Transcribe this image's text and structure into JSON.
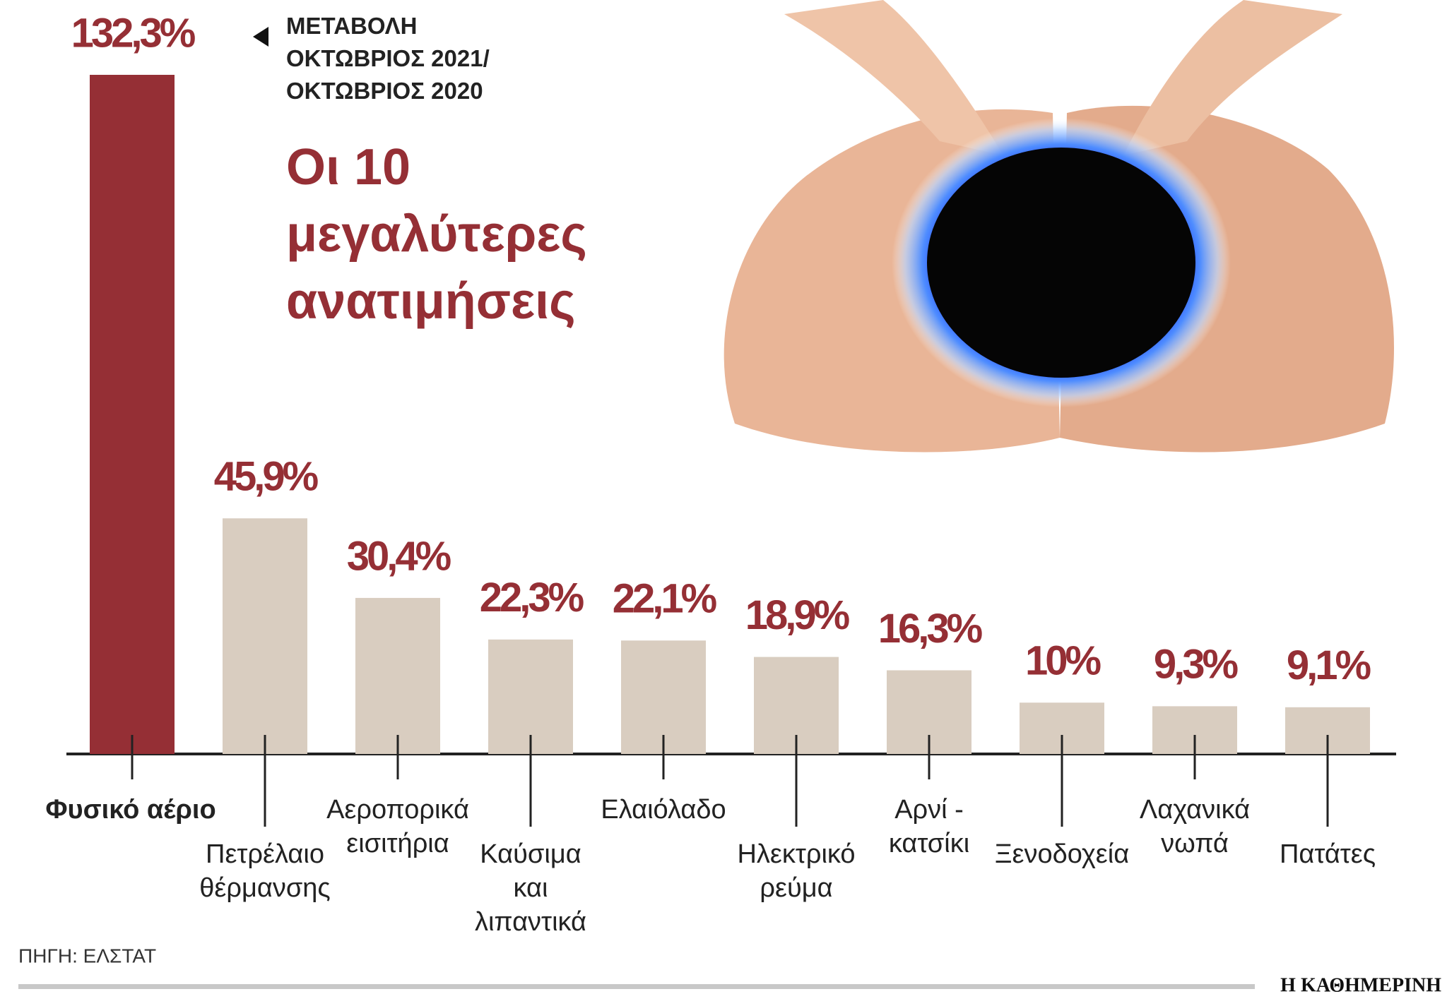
{
  "chart_data": {
    "type": "bar",
    "title": "Οι 10\nμεγαλύτερες\nανατιμήσεις",
    "subtitle": "ΜΕΤΑΒΟΛΗ\nΟΚΤΩΒΡΙΟΣ 2021/\nΟΚΤΩΒΡΙΟΣ 2020",
    "categories": [
      "Φυσικό αέριο",
      "Πετρέλαιο\nθέρμανσης",
      "Αεροπορικά\nεισιτήρια",
      "Καύσιμα\nκαι\nλιπαντικά",
      "Ελαιόλαδο",
      "Ηλεκτρικό\nρεύμα",
      "Αρνί -\nκατσίκι",
      "Ξενοδοχεία",
      "Λαχανικά\nνωπά",
      "Πατάτες"
    ],
    "values": [
      132.3,
      45.9,
      30.4,
      22.3,
      22.1,
      18.9,
      16.3,
      10,
      9.3,
      9.1
    ],
    "value_labels": [
      "132,3%",
      "45,9%",
      "30,4%",
      "22,3%",
      "22,1%",
      "18,9%",
      "16,3%",
      "10%",
      "9,3%",
      "9,1%"
    ],
    "highlight_color": "#952f35",
    "color": "#d9cdc0",
    "source": "ΠΗΓΗ: ΕΛΣΤΑΤ",
    "brand": "Η ΚΑΘΗΜΕΡΙΝΗ"
  }
}
